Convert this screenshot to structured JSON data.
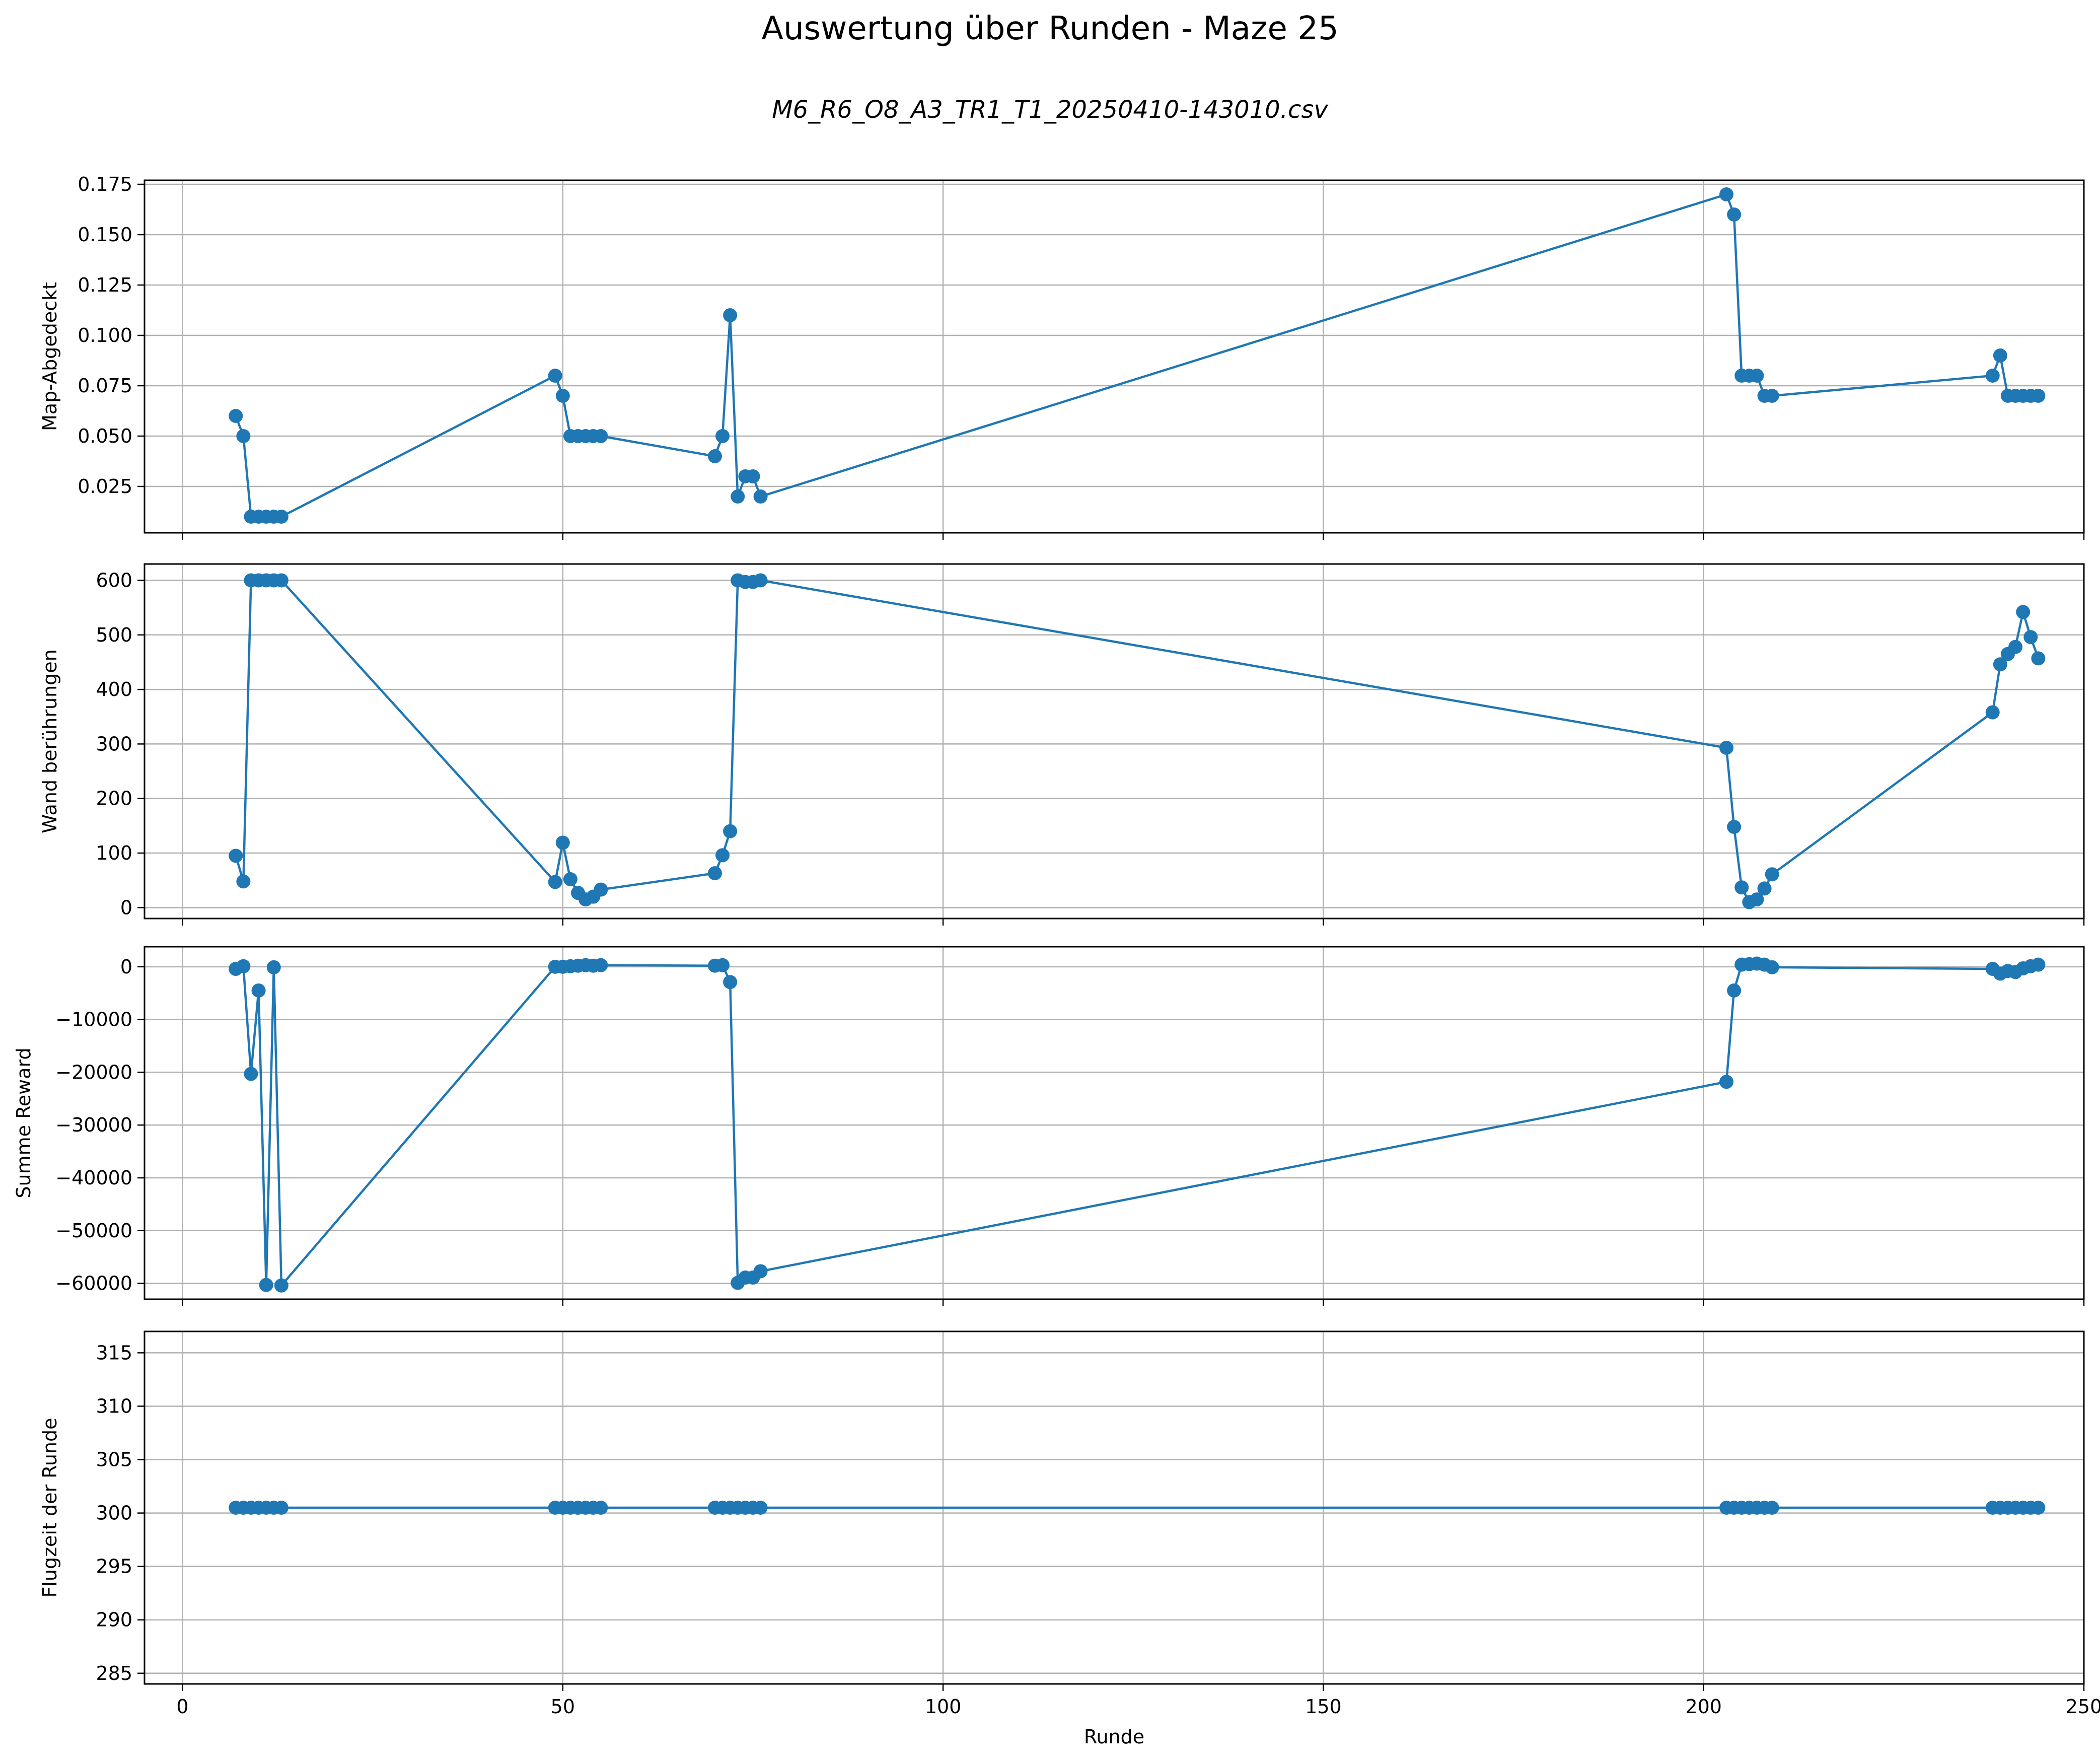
{
  "figure": {
    "title": "Auswertung über Runden - Maze 25",
    "subtitle": "M6_R6_O8_A3_TR1_T1_20250410-143010.csv",
    "line_color": "#1f77b4"
  },
  "chart_data": [
    {
      "type": "line",
      "ylabel": "Map-Abgedeckt",
      "xlabel": "",
      "xlim": [
        -5,
        250
      ],
      "ylim": [
        0.002,
        0.177
      ],
      "xticks": [
        0,
        50,
        100,
        150,
        200,
        250
      ],
      "yticks": [
        0.025,
        0.05,
        0.075,
        0.1,
        0.125,
        0.15,
        0.175
      ],
      "ytick_labels": [
        "0.025",
        "0.050",
        "0.075",
        "0.100",
        "0.125",
        "0.150",
        "0.175"
      ],
      "grid": true,
      "x": [
        7,
        8,
        9,
        10,
        11,
        12,
        13,
        49,
        50,
        51,
        52,
        53,
        54,
        55,
        70,
        71,
        72,
        73,
        74,
        75,
        76,
        203,
        204,
        205,
        206,
        207,
        208,
        209,
        238,
        239,
        240,
        241,
        242,
        243,
        244
      ],
      "y": [
        0.06,
        0.05,
        0.01,
        0.01,
        0.01,
        0.01,
        0.01,
        0.08,
        0.07,
        0.05,
        0.05,
        0.05,
        0.05,
        0.05,
        0.04,
        0.05,
        0.11,
        0.02,
        0.03,
        0.03,
        0.02,
        0.17,
        0.16,
        0.08,
        0.08,
        0.08,
        0.07,
        0.07,
        0.08,
        0.09,
        0.07,
        0.07,
        0.07,
        0.07,
        0.07
      ]
    },
    {
      "type": "line",
      "ylabel": "Wand berührungen",
      "xlabel": "",
      "xlim": [
        -5,
        250
      ],
      "ylim": [
        -20,
        630
      ],
      "xticks": [
        0,
        50,
        100,
        150,
        200,
        250
      ],
      "yticks": [
        0,
        100,
        200,
        300,
        400,
        500,
        600
      ],
      "ytick_labels": [
        "0",
        "100",
        "200",
        "300",
        "400",
        "500",
        "600"
      ],
      "grid": true,
      "x": [
        7,
        8,
        9,
        10,
        11,
        12,
        13,
        49,
        50,
        51,
        52,
        53,
        54,
        55,
        70,
        71,
        72,
        73,
        74,
        75,
        76,
        203,
        204,
        205,
        206,
        207,
        208,
        209,
        238,
        239,
        240,
        241,
        242,
        243,
        244
      ],
      "y": [
        95,
        48,
        600,
        600,
        600,
        600,
        600,
        47,
        119,
        52,
        27,
        15,
        20,
        33,
        63,
        96,
        140,
        600,
        597,
        597,
        600,
        293,
        148,
        37,
        10,
        15,
        35,
        61,
        358,
        446,
        465,
        478,
        542,
        496,
        457
      ]
    },
    {
      "type": "line",
      "ylabel": "Summe Reward",
      "xlabel": "",
      "xlim": [
        -5,
        250
      ],
      "ylim": [
        -63000,
        3800
      ],
      "xticks": [
        0,
        50,
        100,
        150,
        200,
        250
      ],
      "yticks": [
        0,
        -10000,
        -20000,
        -30000,
        -40000,
        -50000,
        -60000
      ],
      "ytick_labels": [
        "0",
        "−10000",
        "−20000",
        "−30000",
        "−40000",
        "−50000",
        "−60000"
      ],
      "grid": true,
      "x": [
        7,
        8,
        9,
        10,
        11,
        12,
        13,
        49,
        50,
        51,
        52,
        53,
        54,
        55,
        70,
        71,
        72,
        73,
        74,
        75,
        76,
        203,
        204,
        205,
        206,
        207,
        208,
        209,
        238,
        239,
        240,
        241,
        242,
        243,
        244
      ],
      "y": [
        -400,
        100,
        -20300,
        -4500,
        -60300,
        -100,
        -60400,
        0,
        0,
        100,
        200,
        300,
        200,
        300,
        200,
        300,
        -2900,
        -59900,
        -58900,
        -58900,
        -57700,
        -21800,
        -4500,
        400,
        500,
        600,
        400,
        -100,
        -400,
        -1300,
        -800,
        -1000,
        -300,
        100,
        400
      ]
    },
    {
      "type": "line",
      "ylabel": "Flugzeit der Runde",
      "xlabel": "Runde",
      "xlim": [
        -5,
        250
      ],
      "ylim": [
        284,
        317
      ],
      "xticks": [
        0,
        50,
        100,
        150,
        200,
        250
      ],
      "xtick_labels": [
        "0",
        "50",
        "100",
        "150",
        "200",
        "250"
      ],
      "yticks": [
        285,
        290,
        295,
        300,
        305,
        310,
        315
      ],
      "ytick_labels": [
        "285",
        "290",
        "295",
        "300",
        "305",
        "310",
        "315"
      ],
      "grid": true,
      "x": [
        7,
        8,
        9,
        10,
        11,
        12,
        13,
        49,
        50,
        51,
        52,
        53,
        54,
        55,
        70,
        71,
        72,
        73,
        74,
        75,
        76,
        203,
        204,
        205,
        206,
        207,
        208,
        209,
        238,
        239,
        240,
        241,
        242,
        243,
        244
      ],
      "y": [
        300.5,
        300.5,
        300.5,
        300.5,
        300.5,
        300.5,
        300.5,
        300.5,
        300.5,
        300.5,
        300.5,
        300.5,
        300.5,
        300.5,
        300.5,
        300.5,
        300.5,
        300.5,
        300.5,
        300.5,
        300.5,
        300.5,
        300.5,
        300.5,
        300.5,
        300.5,
        300.5,
        300.5,
        300.5,
        300.5,
        300.5,
        300.5,
        300.5,
        300.5,
        300.5
      ]
    }
  ]
}
